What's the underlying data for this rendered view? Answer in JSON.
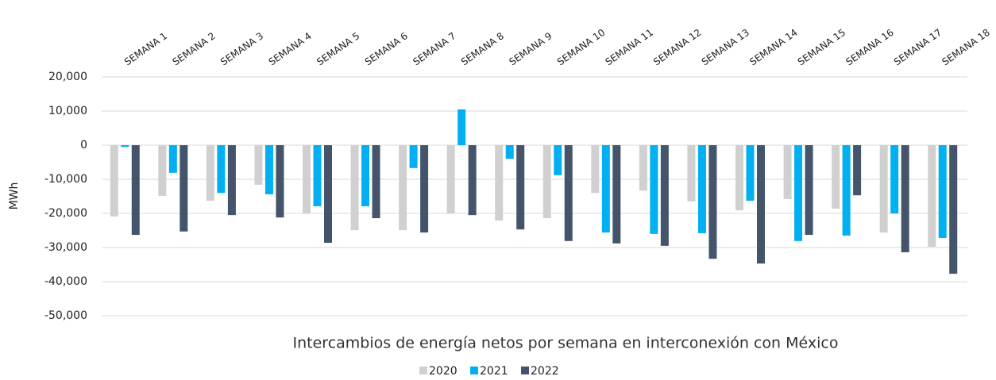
{
  "chart_data": {
    "type": "bar",
    "title": "Intercambios de energía netos por semana en interconexión con México",
    "y_label": "MWh",
    "categories": [
      "SEMANA 1",
      "SEMANA 2",
      "SEMANA 3",
      "SEMANA 4",
      "SEMANA 5",
      "SEMANA 6",
      "SEMANA 7",
      "SEMANA 8",
      "SEMANA 9",
      "SEMANA 10",
      "SEMANA 11",
      "SEMANA 12",
      "SEMANA 13",
      "SEMANA 14",
      "SEMANA 15",
      "SEMANA 16",
      "SEMANA 17",
      "SEMANA 18"
    ],
    "series": [
      {
        "name": "2020",
        "color": "#d0d0d0",
        "values": [
          -20900,
          -14900,
          -16300,
          -11600,
          -20000,
          -24900,
          -24900,
          -20000,
          -22100,
          -21400,
          -14000,
          -13300,
          -16500,
          -19100,
          -15800,
          -18600,
          -25600,
          -29800
        ]
      },
      {
        "name": "2021",
        "color": "#00b0f0",
        "values": [
          -500,
          -8100,
          -14000,
          -14400,
          -17900,
          -17900,
          -6700,
          10500,
          -4000,
          -8800,
          -25600,
          -26000,
          -25800,
          -16300,
          -28100,
          -26500,
          -20000,
          -27200
        ]
      },
      {
        "name": "2022",
        "color": "#44546a",
        "values": [
          -26300,
          -25300,
          -20500,
          -21200,
          -28600,
          -21400,
          -25600,
          -20500,
          -24700,
          -28100,
          -28800,
          -29500,
          -33300,
          -34700,
          -26300,
          -14700,
          -31400,
          -37700
        ]
      }
    ],
    "ylim": [
      -50000,
      20000
    ],
    "yticks": [
      {
        "value": 20000,
        "label": "20,000"
      },
      {
        "value": 10000,
        "label": "10,000"
      },
      0,
      {
        "value": -10000,
        "label": "-10,000"
      },
      {
        "value": -20000,
        "label": "-20,000"
      },
      {
        "value": -30000,
        "label": "-30,000"
      },
      {
        "value": -40000,
        "label": "-40,000"
      },
      {
        "value": -50000,
        "label": "-50,000"
      }
    ],
    "grid": true
  }
}
